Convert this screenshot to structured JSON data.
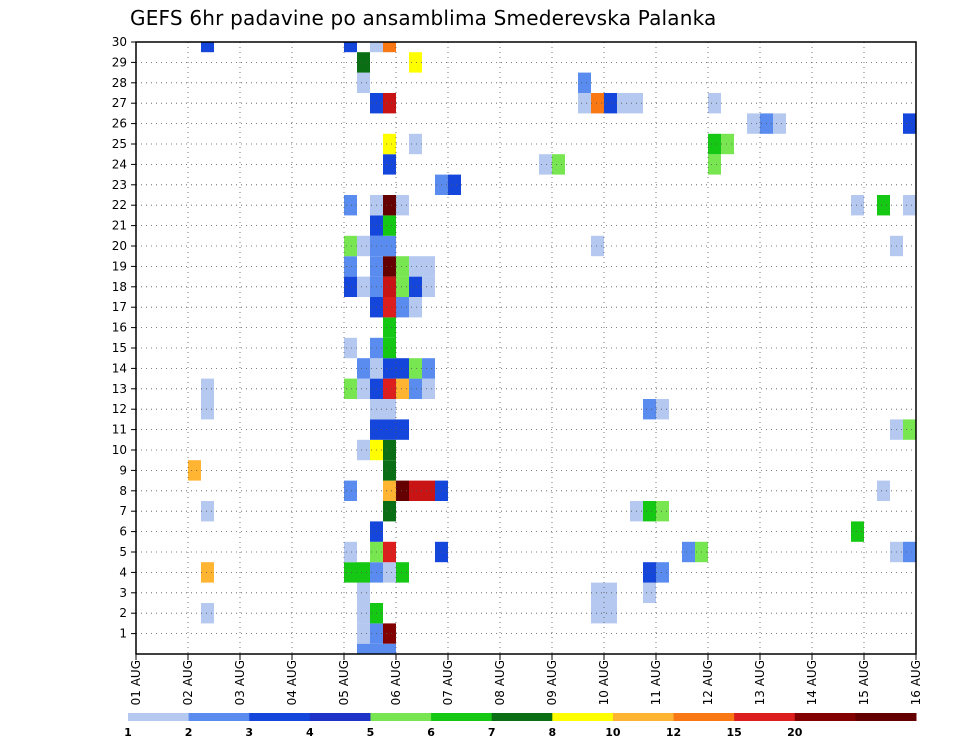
{
  "chart_data": {
    "type": "heatmap",
    "title": "GEFS 6hr padavine po ansamblima Smederevska Palanka",
    "xlabel": "",
    "ylabel": "",
    "x_ticks": [
      "01 AUG",
      "02 AUG",
      "03 AUG",
      "04 AUG",
      "05 AUG",
      "06 AUG",
      "07 AUG",
      "08 AUG",
      "09 AUG",
      "10 AUG",
      "11 AUG",
      "12 AUG",
      "13 AUG",
      "14 AUG",
      "15 AUG",
      "16 AUG"
    ],
    "y_ticks": [
      1,
      2,
      3,
      4,
      5,
      6,
      7,
      8,
      9,
      10,
      11,
      12,
      13,
      14,
      15,
      16,
      17,
      18,
      19,
      20,
      21,
      22,
      23,
      24,
      25,
      26,
      27,
      28,
      29,
      30
    ],
    "xlim_days": [
      1,
      16
    ],
    "ylim": [
      0,
      30
    ],
    "step_hours": 6,
    "grid": true,
    "colorbar": {
      "labels": [
        "1",
        "2",
        "3",
        "4",
        "5",
        "6",
        "7",
        "8",
        "10",
        "12",
        "15",
        "20"
      ],
      "colors": [
        "#b4c8f0",
        "#5a8cf0",
        "#1446dc",
        "#1e32c8",
        "#78e650",
        "#14c814",
        "#0a6e14",
        "#ffff00",
        "#ffb432",
        "#fa7814",
        "#dc1e1e",
        "#820000",
        "#640000"
      ]
    },
    "cells": [
      [
        5.25,
        1,
        "#b4c8f0"
      ],
      [
        5.5,
        1,
        "#5a8cf0"
      ],
      [
        5.75,
        1,
        "#820000"
      ],
      [
        5.25,
        2,
        "#b4c8f0"
      ],
      [
        5.5,
        2,
        "#14c814"
      ],
      [
        2.25,
        2,
        "#b4c8f0"
      ],
      [
        9.75,
        2,
        "#b4c8f0"
      ],
      [
        10,
        2,
        "#b4c8f0"
      ],
      [
        5.25,
        3,
        "#b4c8f0"
      ],
      [
        9.75,
        3,
        "#b4c8f0"
      ],
      [
        10,
        3,
        "#b4c8f0"
      ],
      [
        10.75,
        3,
        "#b4c8f0"
      ],
      [
        5,
        4,
        "#14c814"
      ],
      [
        5.25,
        4,
        "#14c814"
      ],
      [
        5.5,
        4,
        "#5a8cf0"
      ],
      [
        5.75,
        4,
        "#b4c8f0"
      ],
      [
        6,
        4,
        "#14c814"
      ],
      [
        2.25,
        4,
        "#ffb432"
      ],
      [
        10.75,
        4,
        "#1446dc"
      ],
      [
        11,
        4,
        "#5a8cf0"
      ],
      [
        5,
        5,
        "#b4c8f0"
      ],
      [
        5.5,
        5,
        "#78e650"
      ],
      [
        5.75,
        5,
        "#dc1e1e"
      ],
      [
        6.75,
        5,
        "#1446dc"
      ],
      [
        11.5,
        5,
        "#5a8cf0"
      ],
      [
        11.75,
        5,
        "#78e650"
      ],
      [
        15.5,
        5,
        "#b4c8f0"
      ],
      [
        15.75,
        5,
        "#5a8cf0"
      ],
      [
        5.5,
        6,
        "#1446dc"
      ],
      [
        14.75,
        6,
        "#14c814"
      ],
      [
        5.75,
        7,
        "#0a6e14"
      ],
      [
        2.25,
        7,
        "#b4c8f0"
      ],
      [
        10.5,
        7,
        "#b4c8f0"
      ],
      [
        10.75,
        7,
        "#14c814"
      ],
      [
        11,
        7,
        "#78e650"
      ],
      [
        5,
        8,
        "#5a8cf0"
      ],
      [
        5.75,
        8,
        "#ffb432"
      ],
      [
        6,
        8,
        "#640000"
      ],
      [
        6.25,
        8,
        "#c81414"
      ],
      [
        6.5,
        8,
        "#c81414"
      ],
      [
        6.75,
        8,
        "#1446dc"
      ],
      [
        15.25,
        8,
        "#b4c8f0"
      ],
      [
        2,
        9,
        "#ffb432"
      ],
      [
        5.75,
        9,
        "#0a6e14"
      ],
      [
        5.25,
        10,
        "#b4c8f0"
      ],
      [
        5.5,
        10,
        "#ffff00"
      ],
      [
        5.75,
        10,
        "#0a6e14"
      ],
      [
        5.5,
        11,
        "#1446dc"
      ],
      [
        5.75,
        11,
        "#1446dc"
      ],
      [
        6,
        11,
        "#1446dc"
      ],
      [
        15.5,
        11,
        "#b4c8f0"
      ],
      [
        15.75,
        11,
        "#78e650"
      ],
      [
        5.5,
        12,
        "#b4c8f0"
      ],
      [
        5.75,
        12,
        "#b4c8f0"
      ],
      [
        2.25,
        12,
        "#b4c8f0"
      ],
      [
        10.75,
        12,
        "#5a8cf0"
      ],
      [
        11,
        12,
        "#b4c8f0"
      ],
      [
        2.25,
        13,
        "#b4c8f0"
      ],
      [
        5,
        13,
        "#78e650"
      ],
      [
        5.25,
        13,
        "#b4c8f0"
      ],
      [
        5.5,
        13,
        "#1446dc"
      ],
      [
        5.75,
        13,
        "#dc1e1e"
      ],
      [
        6,
        13,
        "#ffb432"
      ],
      [
        6.25,
        13,
        "#5a8cf0"
      ],
      [
        6.5,
        13,
        "#b4c8f0"
      ],
      [
        5.25,
        14,
        "#5a8cf0"
      ],
      [
        5.5,
        14,
        "#b4c8f0"
      ],
      [
        5.75,
        14,
        "#1446dc"
      ],
      [
        6,
        14,
        "#1446dc"
      ],
      [
        6.25,
        14,
        "#78e650"
      ],
      [
        6.5,
        14,
        "#5a8cf0"
      ],
      [
        5,
        15,
        "#b4c8f0"
      ],
      [
        5.5,
        15,
        "#5a8cf0"
      ],
      [
        5.75,
        15,
        "#14c814"
      ],
      [
        5.75,
        16,
        "#14c814"
      ],
      [
        5.5,
        17,
        "#1446dc"
      ],
      [
        5.75,
        17,
        "#dc1e1e"
      ],
      [
        6,
        17,
        "#5a8cf0"
      ],
      [
        6.25,
        17,
        "#b4c8f0"
      ],
      [
        5,
        18,
        "#1446dc"
      ],
      [
        5.25,
        18,
        "#b4c8f0"
      ],
      [
        5.5,
        18,
        "#5a8cf0"
      ],
      [
        5.75,
        18,
        "#c81414"
      ],
      [
        6,
        18,
        "#78e650"
      ],
      [
        6.25,
        18,
        "#1446dc"
      ],
      [
        6.5,
        18,
        "#b4c8f0"
      ],
      [
        5,
        19,
        "#5a8cf0"
      ],
      [
        5.5,
        19,
        "#5a8cf0"
      ],
      [
        5.75,
        19,
        "#640000"
      ],
      [
        6,
        19,
        "#78e650"
      ],
      [
        6.25,
        19,
        "#b4c8f0"
      ],
      [
        6.5,
        19,
        "#b4c8f0"
      ],
      [
        5,
        20,
        "#78e650"
      ],
      [
        5.25,
        20,
        "#b4c8f0"
      ],
      [
        5.5,
        20,
        "#5a8cf0"
      ],
      [
        5.75,
        20,
        "#5a8cf0"
      ],
      [
        9.75,
        20,
        "#b4c8f0"
      ],
      [
        15.5,
        20,
        "#b4c8f0"
      ],
      [
        5.5,
        21,
        "#1446dc"
      ],
      [
        5.75,
        21,
        "#14c814"
      ],
      [
        5,
        22,
        "#5a8cf0"
      ],
      [
        5.5,
        22,
        "#b4c8f0"
      ],
      [
        5.75,
        22,
        "#640000"
      ],
      [
        6,
        22,
        "#b4c8f0"
      ],
      [
        14.75,
        22,
        "#b4c8f0"
      ],
      [
        15.25,
        22,
        "#14c814"
      ],
      [
        15.75,
        22,
        "#b4c8f0"
      ],
      [
        6.75,
        23,
        "#5a8cf0"
      ],
      [
        7,
        23,
        "#1446dc"
      ],
      [
        5.75,
        24,
        "#1446dc"
      ],
      [
        8.75,
        24,
        "#b4c8f0"
      ],
      [
        9,
        24,
        "#78e650"
      ],
      [
        12,
        24,
        "#78e650"
      ],
      [
        5.75,
        25,
        "#ffff00"
      ],
      [
        6.25,
        25,
        "#b4c8f0"
      ],
      [
        12,
        25,
        "#14c814"
      ],
      [
        12.25,
        25,
        "#78e650"
      ],
      [
        12.75,
        26,
        "#b4c8f0"
      ],
      [
        13,
        26,
        "#5a8cf0"
      ],
      [
        13.25,
        26,
        "#b4c8f0"
      ],
      [
        15.75,
        26,
        "#1446dc"
      ],
      [
        5.5,
        27,
        "#1446dc"
      ],
      [
        5.75,
        27,
        "#c81414"
      ],
      [
        9.5,
        27,
        "#b4c8f0"
      ],
      [
        9.75,
        27,
        "#fa7814"
      ],
      [
        10,
        27,
        "#1446dc"
      ],
      [
        10.25,
        27,
        "#b4c8f0"
      ],
      [
        10.5,
        27,
        "#b4c8f0"
      ],
      [
        12,
        27,
        "#b4c8f0"
      ],
      [
        5.25,
        28,
        "#b4c8f0"
      ],
      [
        9.5,
        28,
        "#5a8cf0"
      ],
      [
        5.25,
        29,
        "#0a6e14"
      ],
      [
        6.25,
        29,
        "#ffff00"
      ],
      [
        2.25,
        30,
        "#1446dc"
      ],
      [
        5,
        30,
        "#1446dc"
      ],
      [
        5.5,
        30,
        "#b4c8f0"
      ],
      [
        5.75,
        30,
        "#fa7814"
      ],
      [
        5.25,
        0,
        "#5a8cf0"
      ],
      [
        5.5,
        0,
        "#5a8cf0"
      ],
      [
        5.75,
        0,
        "#5a8cf0"
      ]
    ]
  }
}
